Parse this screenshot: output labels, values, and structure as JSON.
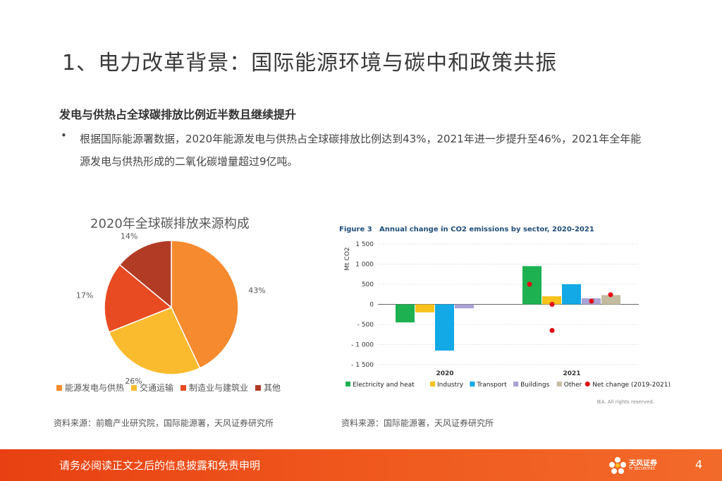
{
  "slide": {
    "title": "1、电力改革背景：国际能源环境与碳中和政策共振",
    "subhead": "发电与供热占全球碳排放比例近半数且继续提升",
    "bullet_marker": "•",
    "bullet_text": "根据国际能源署数据，2020年能源发电与供热占全球碳排放比例达到43%，2021年进一步提升至46%，2021年全年能源发电与供热形成的二氧化碳增量超过9亿吨。",
    "source_left": "资料来源：前瞻产业研究院，国际能源署，天风证券研究所",
    "source_right": "资料来源：国际能源署，天风证券研究所"
  },
  "footer": {
    "disclaimer": "请务必阅读正文之后的信息披露和免责申明",
    "logo_text": "天风证券",
    "logo_sub": "TF SECURITIES",
    "page_number": "4"
  },
  "chart_data": [
    {
      "type": "pie",
      "title": "2020年全球碳排放来源构成",
      "categories": [
        "能源发电与供热",
        "交通运输",
        "制造业与建筑业",
        "其他"
      ],
      "values": [
        43,
        26,
        17,
        14
      ],
      "labels": [
        "43%",
        "26%",
        "17%",
        "14%"
      ],
      "colors": [
        "#f58a2e",
        "#fbbb2f",
        "#e84a22",
        "#b23b26"
      ],
      "legend": "bottom"
    },
    {
      "type": "bar",
      "figure_label": "Figure 3",
      "title": "Annual change in CO2 emissions by sector, 2020-2021",
      "ylabel": "Mt CO2",
      "ylim": [
        -1500,
        1500
      ],
      "yticks": [
        1500,
        1000,
        500,
        0,
        -500,
        -1000,
        -1500
      ],
      "ytick_labels": [
        "1 500",
        "1 000",
        "500",
        "0",
        "- 500",
        "- 1 000",
        "- 1 500"
      ],
      "categories": [
        "2020",
        "2021"
      ],
      "series": [
        {
          "name": "Electricity and heat",
          "color": "#1db152",
          "values": [
            -450,
            950
          ]
        },
        {
          "name": "Industry",
          "color": "#f7c21b",
          "values": [
            -200,
            200
          ]
        },
        {
          "name": "Transport",
          "color": "#12a9e6",
          "values": [
            -1150,
            500
          ]
        },
        {
          "name": "Buildings",
          "color": "#a9a2d3",
          "values": [
            -100,
            150
          ]
        },
        {
          "name": "Other",
          "color": "#c4bca0",
          "values": [
            0,
            230
          ]
        }
      ],
      "net_change": {
        "name": "Net change (2019-2021)",
        "color": "#e30613",
        "values": [
          [
            500,
            0
          ],
          [
            80,
            240
          ]
        ],
        "extra_point": -650
      },
      "grid": true,
      "legend": "bottom",
      "copyright": "IEA. All rights reserved."
    }
  ]
}
